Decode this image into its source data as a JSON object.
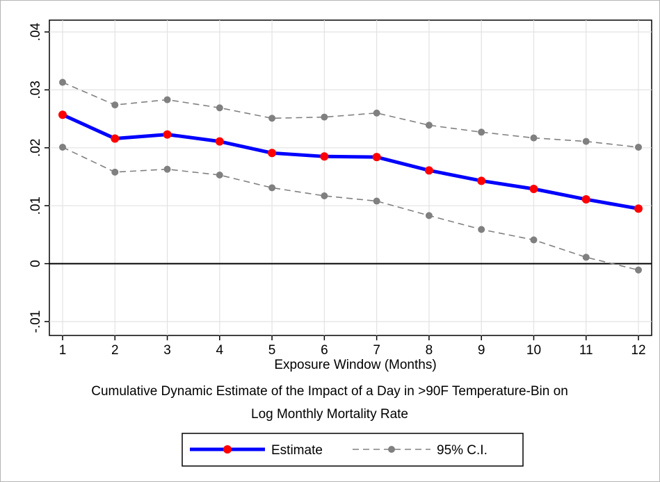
{
  "chart_data": {
    "type": "line",
    "x": [
      1,
      2,
      3,
      4,
      5,
      6,
      7,
      8,
      9,
      10,
      11,
      12
    ],
    "xlabel": "Exposure Window (Months)",
    "xlim": [
      1,
      12
    ],
    "x_ticks": [
      "1",
      "2",
      "3",
      "4",
      "5",
      "6",
      "7",
      "8",
      "9",
      "10",
      "11",
      "12"
    ],
    "ylabel": "",
    "ylim": [
      -0.01,
      0.04
    ],
    "y_ticks": [
      {
        "value": -0.01,
        "label": "-.01"
      },
      {
        "value": 0,
        "label": "0"
      },
      {
        "value": 0.01,
        "label": ".01"
      },
      {
        "value": 0.02,
        "label": ".02"
      },
      {
        "value": 0.03,
        "label": ".03"
      },
      {
        "value": 0.04,
        "label": ".04"
      }
    ],
    "grid": true,
    "reference_line": 0,
    "note": [
      "Cumulative Dynamic Estimate of the Impact of a Day in >90F Temperature-Bin on",
      "Log Monthly Mortality Rate"
    ],
    "legend_position": "bottom",
    "series": [
      {
        "name": "Estimate",
        "line_color": "#0000ff",
        "marker_color": "#ff0000",
        "values": [
          0.0257,
          0.0216,
          0.0223,
          0.0211,
          0.0191,
          0.0185,
          0.0184,
          0.0161,
          0.0143,
          0.0129,
          0.0111,
          0.0095
        ]
      },
      {
        "name": "95% C.I. (upper)",
        "line_color": "#808080",
        "marker_color": "#808080",
        "values": [
          0.0313,
          0.0274,
          0.0283,
          0.0269,
          0.0251,
          0.0253,
          0.026,
          0.0239,
          0.0227,
          0.0217,
          0.0211,
          0.0201
        ]
      },
      {
        "name": "95% C.I. (lower)",
        "line_color": "#808080",
        "marker_color": "#808080",
        "values": [
          0.0201,
          0.0158,
          0.0163,
          0.0153,
          0.0131,
          0.0117,
          0.0108,
          0.0083,
          0.0059,
          0.0041,
          0.0011,
          -0.0011
        ]
      }
    ],
    "legend": [
      {
        "label": "Estimate",
        "style": "solid",
        "line_color": "#0000ff",
        "marker_color": "#ff0000"
      },
      {
        "label": "95% C.I.",
        "style": "dashed",
        "line_color": "#808080",
        "marker_color": "#808080"
      }
    ]
  }
}
